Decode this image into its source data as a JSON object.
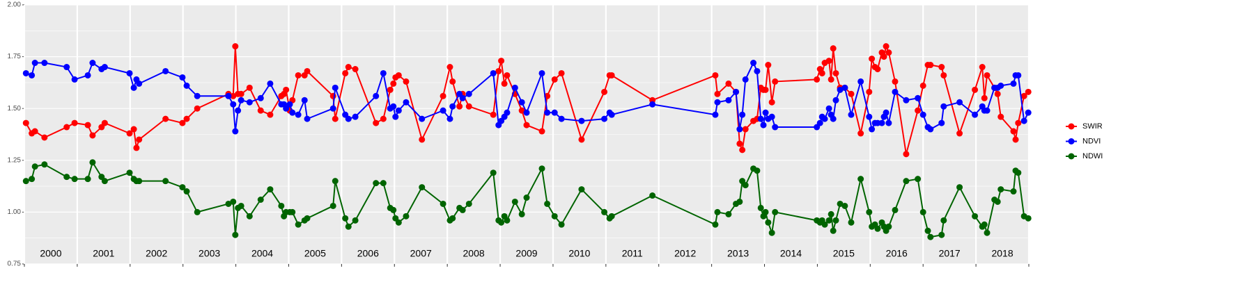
{
  "chart_data": {
    "type": "line",
    "x": [
      2000.03,
      2000.14,
      2000.2,
      2000.38,
      2000.8,
      2000.95,
      2001.2,
      2001.29,
      2001.46,
      2001.52,
      2001.99,
      2002.07,
      2002.12,
      2002.17,
      2002.67,
      2002.99,
      2003.07,
      2003.27,
      2003.86,
      2003.95,
      2003.99,
      2004.04,
      2004.1,
      2004.26,
      2004.47,
      2004.65,
      2004.86,
      2004.91,
      2004.95,
      2005.02,
      2005.07,
      2005.18,
      2005.3,
      2005.35,
      2005.84,
      2005.88,
      2006.07,
      2006.13,
      2006.26,
      2006.65,
      2006.79,
      2006.92,
      2006.98,
      2007.02,
      2007.08,
      2007.22,
      2007.52,
      2007.92,
      2008.05,
      2008.1,
      2008.23,
      2008.29,
      2008.41,
      2008.87,
      2008.97,
      2009.02,
      2009.08,
      2009.13,
      2009.28,
      2009.41,
      2009.5,
      2009.79,
      2009.89,
      2010.03,
      2010.16,
      2010.54,
      2010.97,
      2011.07,
      2011.11,
      2011.88,
      2013.07,
      2013.11,
      2013.32,
      2013.46,
      2013.53,
      2013.58,
      2013.64,
      2013.79,
      2013.86,
      2013.93,
      2013.98,
      2014.02,
      2014.07,
      2014.14,
      2014.2,
      2014.99,
      2015.05,
      2015.09,
      2015.14,
      2015.22,
      2015.26,
      2015.3,
      2015.35,
      2015.43,
      2015.52,
      2015.64,
      2015.82,
      2015.98,
      2016.03,
      2016.09,
      2016.14,
      2016.22,
      2016.26,
      2016.3,
      2016.35,
      2016.47,
      2016.68,
      2016.9,
      2017.0,
      2017.09,
      2017.14,
      2017.35,
      2017.39,
      2017.69,
      2017.98,
      2018.12,
      2018.16,
      2018.21,
      2018.35,
      2018.41,
      2018.47,
      2018.71,
      2018.75,
      2018.8,
      2018.91,
      2018.99
    ],
    "series": [
      {
        "name": "SWIR",
        "color": "#ff0000",
        "values": [
          1.43,
          1.38,
          1.39,
          1.36,
          1.41,
          1.43,
          1.42,
          1.37,
          1.41,
          1.43,
          1.38,
          1.4,
          1.31,
          1.35,
          1.45,
          1.43,
          1.45,
          1.5,
          1.57,
          1.56,
          1.8,
          1.57,
          1.57,
          1.6,
          1.49,
          1.47,
          1.56,
          1.57,
          1.59,
          1.49,
          1.54,
          1.66,
          1.66,
          1.68,
          1.56,
          1.45,
          1.67,
          1.7,
          1.69,
          1.43,
          1.45,
          1.59,
          1.62,
          1.65,
          1.66,
          1.63,
          1.35,
          1.56,
          1.7,
          1.63,
          1.51,
          1.57,
          1.51,
          1.47,
          1.68,
          1.73,
          1.62,
          1.66,
          1.57,
          1.49,
          1.42,
          1.39,
          1.56,
          1.64,
          1.67,
          1.35,
          1.58,
          1.66,
          1.66,
          1.54,
          1.66,
          1.57,
          1.62,
          1.58,
          1.33,
          1.3,
          1.4,
          1.44,
          1.45,
          1.6,
          1.59,
          1.59,
          1.71,
          1.53,
          1.63,
          1.64,
          1.69,
          1.67,
          1.72,
          1.73,
          1.64,
          1.79,
          1.67,
          1.6,
          1.6,
          1.57,
          1.38,
          1.58,
          1.74,
          1.7,
          1.69,
          1.77,
          1.75,
          1.8,
          1.77,
          1.63,
          1.28,
          1.49,
          1.61,
          1.71,
          1.71,
          1.7,
          1.66,
          1.38,
          1.59,
          1.7,
          1.55,
          1.66,
          1.6,
          1.57,
          1.46,
          1.39,
          1.35,
          1.43,
          1.56,
          1.58
        ]
      },
      {
        "name": "NDVI",
        "color": "#0000ff",
        "values": [
          1.67,
          1.66,
          1.72,
          1.72,
          1.7,
          1.64,
          1.66,
          1.72,
          1.69,
          1.7,
          1.67,
          1.6,
          1.64,
          1.62,
          1.68,
          1.65,
          1.61,
          1.56,
          1.56,
          1.52,
          1.39,
          1.49,
          1.54,
          1.53,
          1.55,
          1.62,
          1.52,
          1.52,
          1.5,
          1.52,
          1.48,
          1.47,
          1.54,
          1.45,
          1.5,
          1.6,
          1.47,
          1.45,
          1.46,
          1.56,
          1.67,
          1.5,
          1.51,
          1.46,
          1.49,
          1.53,
          1.45,
          1.49,
          1.45,
          1.51,
          1.57,
          1.55,
          1.57,
          1.67,
          1.42,
          1.44,
          1.46,
          1.48,
          1.6,
          1.53,
          1.48,
          1.67,
          1.48,
          1.48,
          1.45,
          1.44,
          1.45,
          1.48,
          1.47,
          1.52,
          1.47,
          1.53,
          1.54,
          1.58,
          1.4,
          1.47,
          1.64,
          1.72,
          1.68,
          1.45,
          1.42,
          1.48,
          1.45,
          1.46,
          1.41,
          1.41,
          1.43,
          1.46,
          1.45,
          1.5,
          1.47,
          1.45,
          1.54,
          1.59,
          1.6,
          1.47,
          1.63,
          1.46,
          1.4,
          1.43,
          1.43,
          1.43,
          1.46,
          1.48,
          1.43,
          1.58,
          1.54,
          1.55,
          1.47,
          1.41,
          1.4,
          1.43,
          1.51,
          1.53,
          1.47,
          1.51,
          1.49,
          1.49,
          1.6,
          1.6,
          1.61,
          1.62,
          1.66,
          1.66,
          1.44,
          1.48
        ]
      },
      {
        "name": "NDWI",
        "color": "#006400",
        "values": [
          1.15,
          1.16,
          1.22,
          1.23,
          1.17,
          1.16,
          1.16,
          1.24,
          1.17,
          1.15,
          1.19,
          1.16,
          1.15,
          1.15,
          1.15,
          1.12,
          1.1,
          1.0,
          1.04,
          1.05,
          0.89,
          1.02,
          1.03,
          0.98,
          1.06,
          1.11,
          1.03,
          0.98,
          1.0,
          1.0,
          1.0,
          0.94,
          0.96,
          0.97,
          1.03,
          1.15,
          0.97,
          0.93,
          0.96,
          1.14,
          1.14,
          1.02,
          1.01,
          0.97,
          0.95,
          0.98,
          1.12,
          1.04,
          0.96,
          0.97,
          1.02,
          1.01,
          1.04,
          1.19,
          0.96,
          0.95,
          0.98,
          0.96,
          1.05,
          0.99,
          1.07,
          1.21,
          1.04,
          0.98,
          0.94,
          1.11,
          1.0,
          0.97,
          0.98,
          1.08,
          0.94,
          1.0,
          0.99,
          1.04,
          1.05,
          1.15,
          1.13,
          1.21,
          1.2,
          1.02,
          0.98,
          1.0,
          0.95,
          0.9,
          1.0,
          0.96,
          0.95,
          0.96,
          0.94,
          0.96,
          0.99,
          0.91,
          0.96,
          1.04,
          1.03,
          0.95,
          1.16,
          1.0,
          0.93,
          0.94,
          0.92,
          0.95,
          0.93,
          0.91,
          0.93,
          1.01,
          1.15,
          1.16,
          1.0,
          0.91,
          0.88,
          0.89,
          0.96,
          1.12,
          0.98,
          0.93,
          0.94,
          0.9,
          1.06,
          1.05,
          1.11,
          1.1,
          1.2,
          1.19,
          0.98,
          0.97
        ]
      }
    ],
    "xlim": [
      2000,
      2019
    ],
    "xticks": [
      2000,
      2001,
      2002,
      2003,
      2004,
      2005,
      2006,
      2007,
      2008,
      2009,
      2010,
      2011,
      2012,
      2013,
      2014,
      2015,
      2016,
      2017,
      2018,
      2019
    ],
    "year_labels": [
      {
        "value": 2000.5,
        "label": "2000"
      },
      {
        "value": 2001.5,
        "label": "2001"
      },
      {
        "value": 2002.5,
        "label": "2002"
      },
      {
        "value": 2003.5,
        "label": "2003"
      },
      {
        "value": 2004.5,
        "label": "2004"
      },
      {
        "value": 2005.5,
        "label": "2005"
      },
      {
        "value": 2006.5,
        "label": "2006"
      },
      {
        "value": 2007.5,
        "label": "2007"
      },
      {
        "value": 2008.5,
        "label": "2008"
      },
      {
        "value": 2009.5,
        "label": "2009"
      },
      {
        "value": 2010.5,
        "label": "2010"
      },
      {
        "value": 2011.5,
        "label": "2011"
      },
      {
        "value": 2012.5,
        "label": "2012"
      },
      {
        "value": 2013.5,
        "label": "2013"
      },
      {
        "value": 2014.5,
        "label": "2014"
      },
      {
        "value": 2015.5,
        "label": "2015"
      },
      {
        "value": 2016.5,
        "label": "2016"
      },
      {
        "value": 2017.5,
        "label": "2017"
      },
      {
        "value": 2018.5,
        "label": "2018"
      }
    ],
    "ylim": [
      0.75,
      2
    ],
    "yticks": [
      {
        "value": 0.75,
        "label": "0.75"
      },
      {
        "value": 1,
        "label": "1.00"
      },
      {
        "value": 1.25,
        "label": "1.25"
      },
      {
        "value": 1.5,
        "label": "1.50"
      },
      {
        "value": 1.75,
        "label": "1.75"
      },
      {
        "value": 2,
        "label": "2.00"
      }
    ],
    "grid": true,
    "legend": "right"
  }
}
